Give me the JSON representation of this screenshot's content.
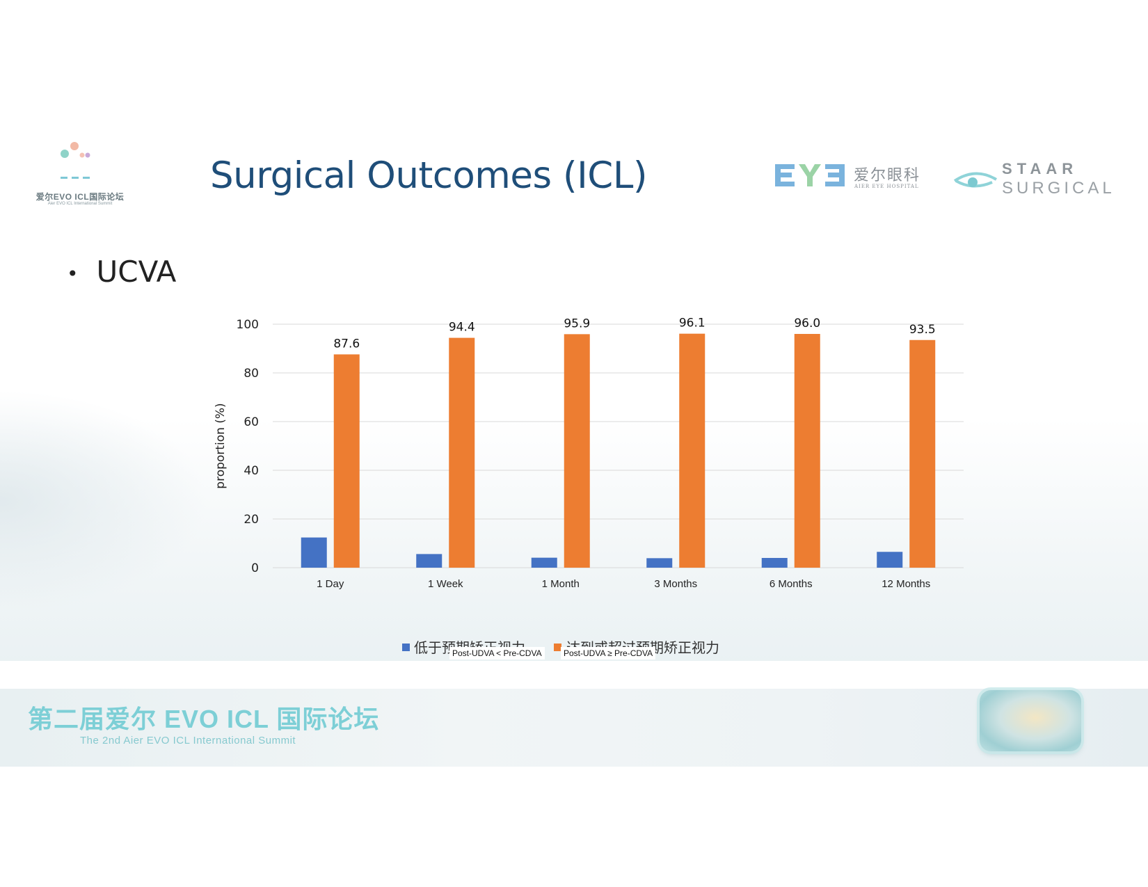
{
  "header": {
    "title": "Surgical Outcomes (ICL)",
    "summit_logo": {
      "cn": "爱尔EVO ICL国际论坛",
      "en": "Aier EVO ICL International Summit"
    },
    "eye_logo": {
      "mark": "EYE",
      "cn": "爱尔眼科",
      "en": "AIER EYE HOSPITAL"
    },
    "staar_logo": {
      "line1": "STAAR",
      "line2": "SURGICAL"
    }
  },
  "bullet": {
    "text": "UCVA"
  },
  "legend": {
    "series1_label_cn": "低于预期矫正视力",
    "series1_label_en": "Post-UDVA < Pre-CDVA",
    "series2_label_cn": "达到或超过预期矫正视力",
    "series2_label_en": "Post-UDVA ≥ Pre-CDVA"
  },
  "footer": {
    "cn": "第二届爱尔 EVO ICL 国际论坛",
    "en": "The 2nd Aier EVO ICL International Summit"
  },
  "colors": {
    "blue": "#4472c4",
    "orange": "#ed7d31",
    "title": "#1f4e79",
    "teal": "#7dcfd6"
  },
  "chart_data": {
    "type": "bar",
    "title": "",
    "xlabel": "",
    "ylabel": "proportion (%)",
    "ylim": [
      0,
      100
    ],
    "yticks": [
      0,
      20,
      40,
      60,
      80,
      100
    ],
    "categories": [
      "1 Day",
      "1 Week",
      "1 Month",
      "3 Months",
      "6 Months",
      "12 Months"
    ],
    "series": [
      {
        "name": "低于预期矫正视力 Post-UDVA < Pre-CDVA",
        "color": "#4472c4",
        "values": [
          12.4,
          5.6,
          4.1,
          3.9,
          4.0,
          6.5
        ],
        "show_labels": false
      },
      {
        "name": "达到或超过预期矫正视力 Post-UDVA ≥ Pre-CDVA",
        "color": "#ed7d31",
        "values": [
          87.6,
          94.4,
          95.9,
          96.1,
          96.0,
          93.5
        ],
        "labels": [
          "87.6",
          "94.4",
          "95.9",
          "96.1",
          "96.0",
          "93.5"
        ],
        "show_labels": true
      }
    ]
  }
}
